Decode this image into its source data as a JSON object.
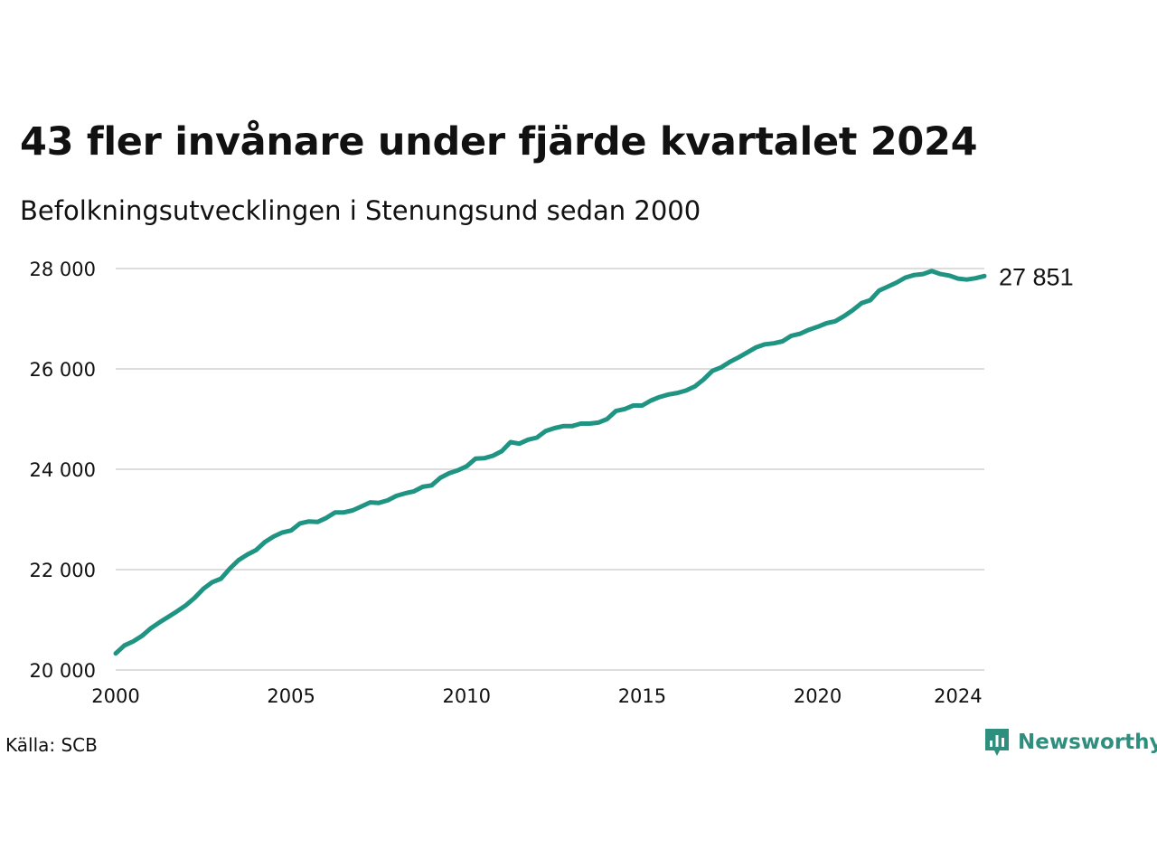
{
  "title": "43 fler invånare under fjärde kvartalet 2024",
  "subtitle": "Befolkningsutvecklingen i Stenungsund sedan 2000",
  "source": "Källa: SCB",
  "brand": {
    "name": "Newsworthy",
    "icon": "newsworthy-logo-icon",
    "color": "#2f8f7f"
  },
  "chart_data": {
    "type": "line",
    "line_color": "#1f9482",
    "grid": true,
    "xlim": [
      2000,
      2024.75
    ],
    "ylim": [
      20000,
      28000
    ],
    "x_ticks": [
      2000,
      2005,
      2010,
      2015,
      2020,
      2024
    ],
    "x_tick_labels": [
      "2000",
      "2005",
      "2010",
      "2015",
      "2020",
      "2024"
    ],
    "y_ticks": [
      20000,
      22000,
      24000,
      26000,
      28000
    ],
    "y_tick_labels": [
      "20 000",
      "22 000",
      "24 000",
      "26 000",
      "28 000"
    ],
    "end_label": "27 851",
    "x": [
      2000,
      2000.25,
      2000.5,
      2000.75,
      2001,
      2001.25,
      2001.5,
      2001.75,
      2002,
      2002.25,
      2002.5,
      2002.75,
      2003,
      2003.25,
      2003.5,
      2003.75,
      2004,
      2004.25,
      2004.5,
      2004.75,
      2005,
      2005.25,
      2005.5,
      2005.75,
      2006,
      2006.25,
      2006.5,
      2006.75,
      2007,
      2007.25,
      2007.5,
      2007.75,
      2008,
      2008.25,
      2008.5,
      2008.75,
      2009,
      2009.25,
      2009.5,
      2009.75,
      2010,
      2010.25,
      2010.5,
      2010.75,
      2011,
      2011.25,
      2011.5,
      2011.75,
      2012,
      2012.25,
      2012.5,
      2012.75,
      2013,
      2013.25,
      2013.5,
      2013.75,
      2014,
      2014.25,
      2014.5,
      2014.75,
      2015,
      2015.25,
      2015.5,
      2015.75,
      2016,
      2016.25,
      2016.5,
      2016.75,
      2017,
      2017.25,
      2017.5,
      2017.75,
      2018,
      2018.25,
      2018.5,
      2018.75,
      2019,
      2019.25,
      2019.5,
      2019.75,
      2020,
      2020.25,
      2020.5,
      2020.75,
      2021,
      2021.25,
      2021.5,
      2021.75,
      2022,
      2022.25,
      2022.5,
      2022.75,
      2023,
      2023.25,
      2023.5,
      2023.75,
      2024,
      2024.25,
      2024.5,
      2024.75
    ],
    "values": [
      20330,
      20490,
      20570,
      20680,
      20830,
      20950,
      21060,
      21170,
      21290,
      21440,
      21620,
      21750,
      21820,
      22020,
      22190,
      22300,
      22390,
      22550,
      22660,
      22740,
      22780,
      22920,
      22960,
      22950,
      23030,
      23140,
      23140,
      23180,
      23260,
      23340,
      23330,
      23380,
      23470,
      23520,
      23560,
      23650,
      23680,
      23830,
      23920,
      23980,
      24060,
      24210,
      24220,
      24270,
      24360,
      24540,
      24510,
      24590,
      24630,
      24760,
      24820,
      24860,
      24860,
      24910,
      24910,
      24930,
      25000,
      25160,
      25200,
      25270,
      25270,
      25370,
      25440,
      25490,
      25520,
      25570,
      25650,
      25790,
      25960,
      26030,
      26140,
      26230,
      26330,
      26430,
      26490,
      26510,
      26550,
      26660,
      26700,
      26780,
      26840,
      26910,
      26950,
      27050,
      27170,
      27310,
      27370,
      27560,
      27640,
      27720,
      27820,
      27870,
      27890,
      27950,
      27890,
      27860,
      27800,
      27780,
      27808,
      27851
    ]
  }
}
